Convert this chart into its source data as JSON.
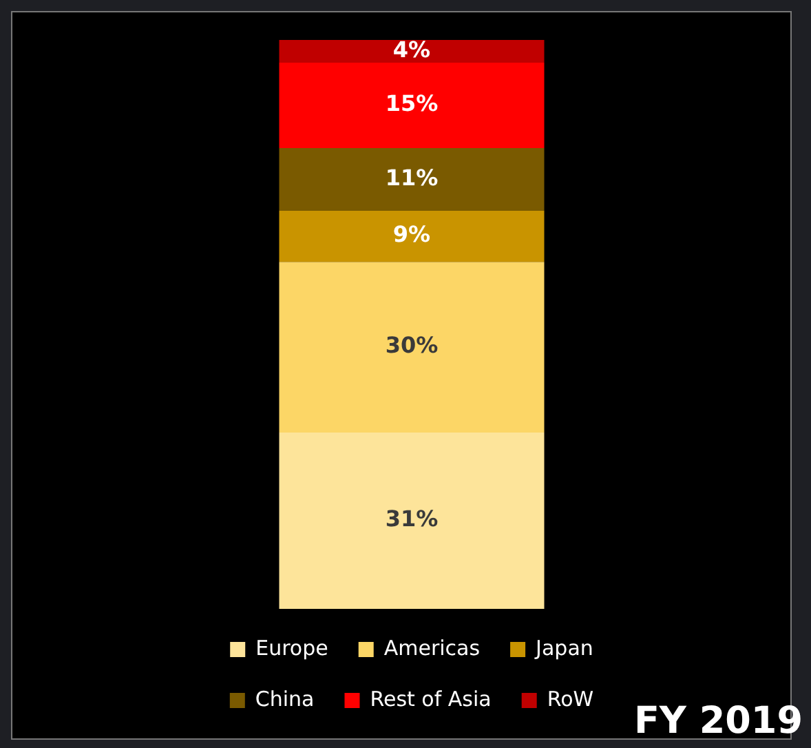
{
  "chart_data": {
    "type": "bar",
    "stacked": true,
    "categories": [
      null
    ],
    "legend": "bottom",
    "data_labels": false,
    "series": [
      {
        "name": "Europe",
        "color": "#fde49a",
        "values": [
          31
        ],
        "value_labels": [
          "31%"
        ]
      },
      {
        "name": "Americas",
        "color": "#fcd666",
        "values": [
          30
        ],
        "value_labels": [
          "30%"
        ]
      },
      {
        "name": "Japan",
        "color": "#c99400",
        "values": [
          9
        ],
        "value_labels": [
          "9%"
        ]
      },
      {
        "name": "China",
        "color": "#7a5a00",
        "values": [
          11
        ],
        "value_labels": [
          "11%"
        ]
      },
      {
        "name": "Rest of Asia",
        "color": "#ff0000",
        "values": [
          15
        ],
        "value_labels": [
          "15%"
        ]
      },
      {
        "name": "RoW",
        "color": "#c00000",
        "values": [
          4
        ],
        "value_labels": [
          "4%"
        ]
      }
    ],
    "annotations": [
      "FY 2019"
    ]
  }
}
